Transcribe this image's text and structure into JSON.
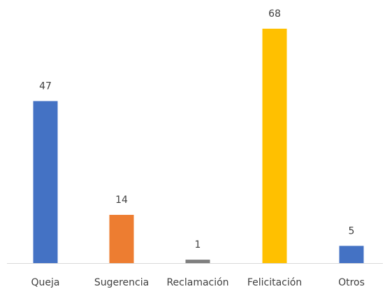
{
  "chart_data": {
    "type": "bar",
    "categories": [
      "Queja",
      "Sugerencia",
      "Reclamación",
      "Felicitación",
      "Otros"
    ],
    "values": [
      47,
      14,
      1,
      68,
      5
    ],
    "colors": [
      "#4472C4",
      "#ED7D31",
      "#7F7F7F",
      "#FFC000",
      "#4472C4"
    ],
    "title": "",
    "xlabel": "",
    "ylabel": "",
    "ylim": [
      0,
      68
    ],
    "grid": false,
    "legend": "none",
    "axis_color": "#D9D9D9",
    "label_color": "#404040"
  }
}
